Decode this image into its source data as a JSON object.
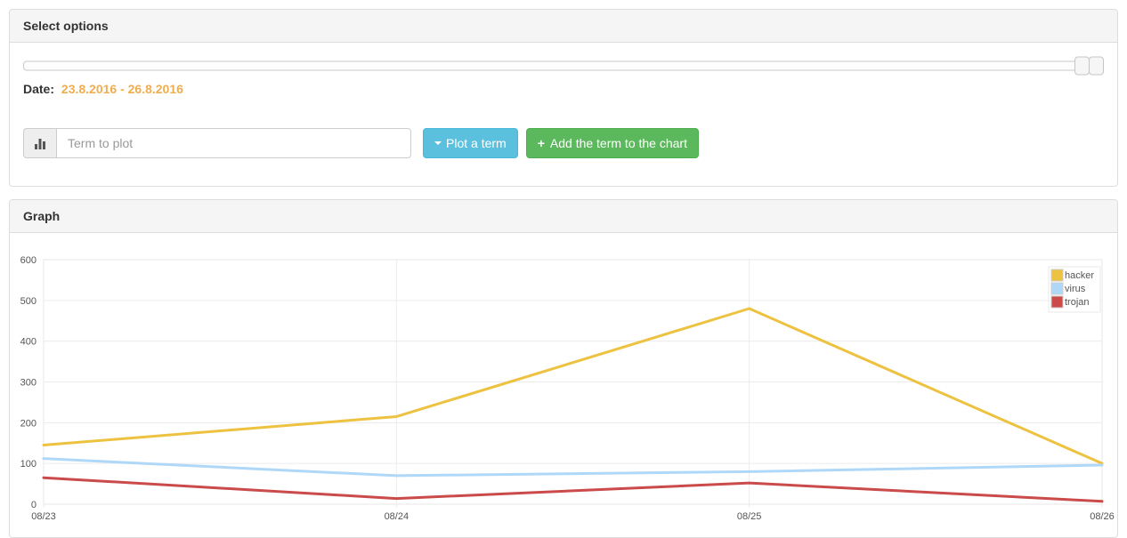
{
  "panels": {
    "options": {
      "title": "Select options",
      "slider": {
        "handles": 2,
        "position": "right-end"
      },
      "date_label": "Date:",
      "date_range": "23.8.2016 - 26.8.2016",
      "date_color": "#f0ad4e",
      "term_input": {
        "placeholder": "Term to plot",
        "value": ""
      },
      "input_addon_icon": "bar-chart",
      "plot_button": {
        "label": "Plot a term",
        "icon": "caret-down",
        "color": "#5bc0de"
      },
      "add_button": {
        "label": "Add the term to the chart",
        "icon": "plus",
        "plus_glyph": "+",
        "color": "#5cb85c"
      }
    },
    "graph": {
      "title": "Graph"
    }
  },
  "chart_data": {
    "type": "line",
    "x": [
      "08/23",
      "08/24",
      "08/25",
      "08/26"
    ],
    "series": [
      {
        "name": "hacker",
        "color": "#edc240",
        "values": [
          145,
          215,
          480,
          100
        ]
      },
      {
        "name": "virus",
        "color": "#afd8f8",
        "values": [
          112,
          70,
          80,
          96
        ]
      },
      {
        "name": "trojan",
        "color": "#cb4b4b",
        "values": [
          65,
          14,
          52,
          7
        ]
      }
    ],
    "title": "",
    "xlabel": "",
    "ylabel": "",
    "ylim": [
      0,
      600
    ],
    "yticks": [
      0,
      100,
      200,
      300,
      400,
      500,
      600
    ],
    "grid": true,
    "grid_color": "#ececec",
    "border_color": "#e7e7e7",
    "axis_text_color": "#545454",
    "legend_position": "top-right"
  }
}
